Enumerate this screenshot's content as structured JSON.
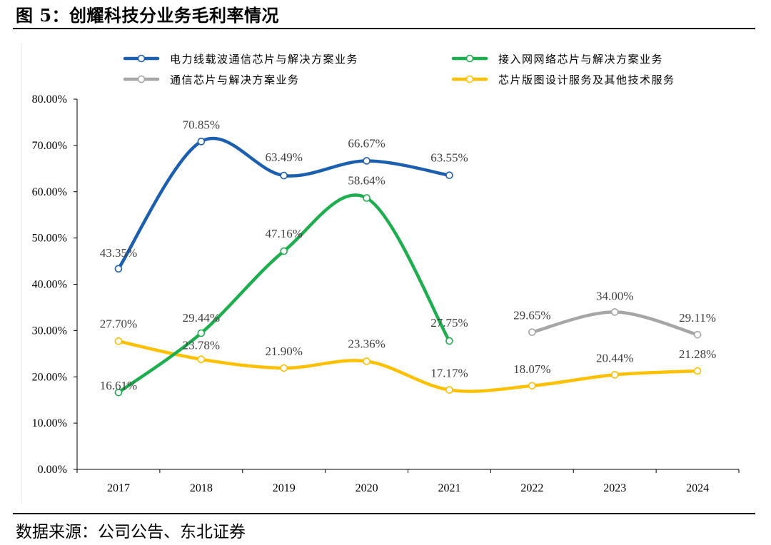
{
  "figure": {
    "title": "图 5：创耀科技分业务毛利率情况",
    "source": "数据来源：公司公告、东北证券"
  },
  "chart_data": {
    "type": "line",
    "categories": [
      "2017",
      "2018",
      "2019",
      "2020",
      "2021",
      "2022",
      "2023",
      "2024"
    ],
    "ylim": [
      0,
      80
    ],
    "y_ticks": [
      "0.00%",
      "10.00%",
      "20.00%",
      "30.00%",
      "40.00%",
      "50.00%",
      "60.00%",
      "70.00%",
      "80.00%"
    ],
    "grid": false,
    "legend_position": "top",
    "smooth": true,
    "series": [
      {
        "name": "电力线载波通信芯片与解决方案业务",
        "color": "#1b5fae",
        "values": [
          43.35,
          70.85,
          63.49,
          66.67,
          63.55,
          null,
          null,
          null
        ],
        "labels": [
          "43.35%",
          "70.85%",
          "63.49%",
          "66.67%",
          "63.55%",
          null,
          null,
          null
        ]
      },
      {
        "name": "接入网网络芯片与解决方案业务",
        "color": "#1fae4f",
        "values": [
          16.61,
          29.44,
          47.16,
          58.64,
          27.75,
          null,
          null,
          null
        ],
        "labels": [
          "16.61%",
          "29.44%",
          "47.16%",
          "58.64%",
          "27.75%",
          null,
          null,
          null
        ]
      },
      {
        "name": "通信芯片与解决方案业务",
        "color": "#a6a6a6",
        "values": [
          null,
          null,
          null,
          null,
          null,
          29.65,
          34.0,
          29.11
        ],
        "labels": [
          null,
          null,
          null,
          null,
          null,
          "29.65%",
          "34.00%",
          "29.11%"
        ]
      },
      {
        "name": "芯片版图设计服务及其他技术服务",
        "color": "#ffc000",
        "values": [
          27.7,
          23.78,
          21.9,
          23.36,
          17.17,
          18.07,
          20.44,
          21.28
        ],
        "labels": [
          "27.70%",
          "23.78%",
          "21.90%",
          "23.36%",
          "17.17%",
          "18.07%",
          "20.44%",
          "21.28%"
        ]
      }
    ]
  }
}
